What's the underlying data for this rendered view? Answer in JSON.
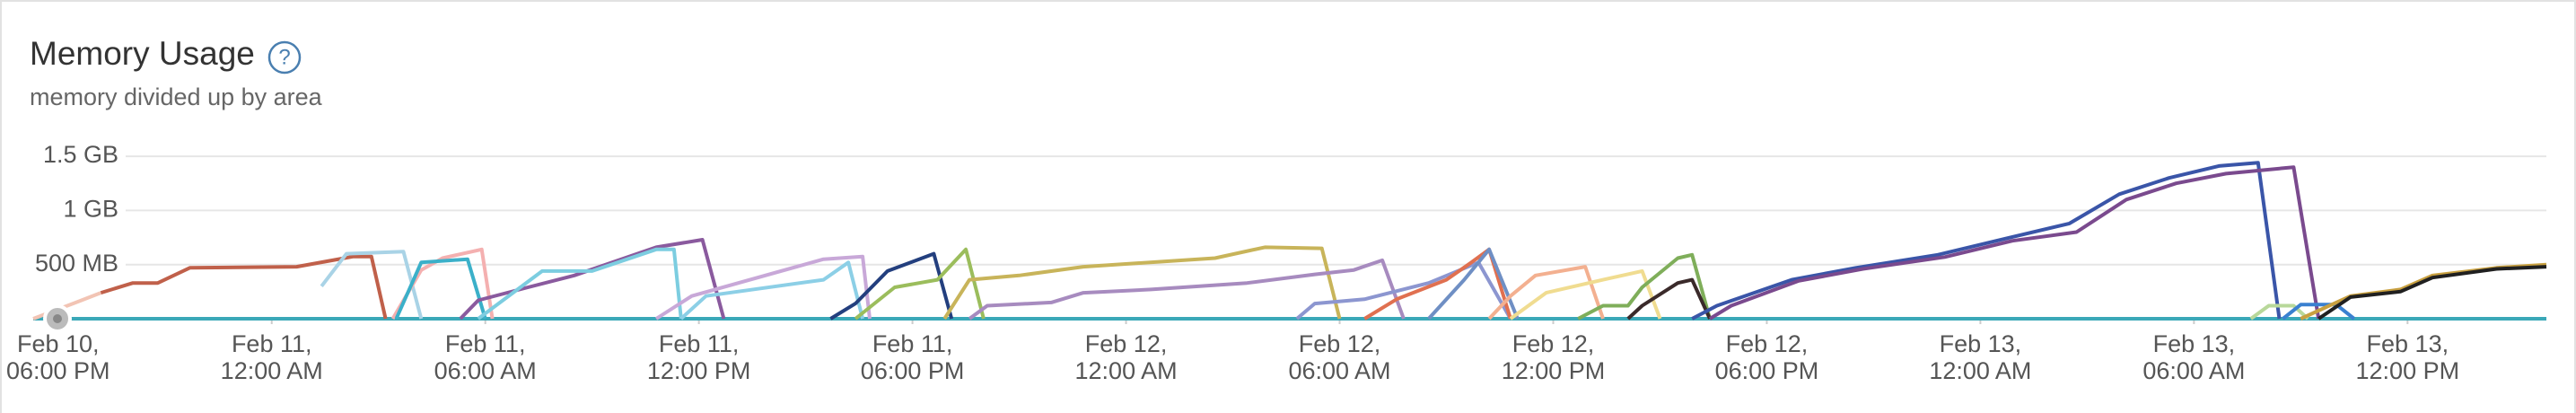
{
  "title": "Memory Usage",
  "help_icon": "?",
  "subtitle": "memory divided up by area",
  "chart_data": {
    "type": "line",
    "xlim": [
      -0.7,
      69.9
    ],
    "xticks": [
      {
        "value": 0,
        "label": "Feb 10, 06:00 PM"
      },
      {
        "value": 6,
        "label": "Feb 11, 12:00 AM"
      },
      {
        "value": 12,
        "label": "Feb 11, 06:00 AM"
      },
      {
        "value": 18,
        "label": "Feb 11, 12:00 PM"
      },
      {
        "value": 24,
        "label": "Feb 11, 06:00 PM"
      },
      {
        "value": 30,
        "label": "Feb 12, 12:00 AM"
      },
      {
        "value": 36,
        "label": "Feb 12, 06:00 AM"
      },
      {
        "value": 42,
        "label": "Feb 12, 12:00 PM"
      },
      {
        "value": 48,
        "label": "Feb 12, 06:00 PM"
      },
      {
        "value": 54,
        "label": "Feb 13, 12:00 AM"
      },
      {
        "value": 60,
        "label": "Feb 13, 06:00 AM"
      },
      {
        "value": 66,
        "label": "Feb 13, 12:00 PM"
      }
    ],
    "ylim": [
      0,
      1650
    ],
    "yticks": [
      {
        "value": 500,
        "label": "500 MB"
      },
      {
        "value": 1000,
        "label": "1 GB"
      },
      {
        "value": 1500,
        "label": "1.5 GB"
      }
    ],
    "grid": true,
    "series": [
      {
        "color": "#3aa8b8",
        "x": [
          -0.7,
          69.9
        ],
        "values": [
          0,
          0
        ]
      },
      {
        "color": "#f2c4b4",
        "x": [
          -0.7,
          0.5,
          1.2
        ],
        "values": [
          0,
          150,
          240
        ]
      },
      {
        "color": "#c0604a",
        "x": [
          1.2,
          2.1,
          2.8,
          3.7,
          6.7,
          8.3,
          8.8,
          9.2
        ],
        "values": [
          240,
          330,
          330,
          470,
          480,
          575,
          575,
          0
        ]
      },
      {
        "color": "#a9d3e6",
        "x": [
          7.4,
          8.1,
          9.7,
          10.2
        ],
        "values": [
          300,
          600,
          620,
          0
        ]
      },
      {
        "color": "#f4b0b0",
        "x": [
          9.4,
          10.2,
          10.8,
          11.9,
          12.2
        ],
        "values": [
          0,
          450,
          560,
          640,
          0
        ]
      },
      {
        "color": "#3bb0c9",
        "x": [
          9.5,
          10.2,
          11.5,
          12.0
        ],
        "values": [
          0,
          520,
          550,
          0
        ]
      },
      {
        "color": "#8a5a9e",
        "x": [
          11.3,
          11.8,
          13.2,
          14.5,
          16.8,
          18.1,
          18.7
        ],
        "values": [
          0,
          170,
          290,
          400,
          660,
          730,
          0
        ]
      },
      {
        "color": "#7ccde0",
        "x": [
          11.8,
          13.6,
          15.0,
          16.8,
          17.3,
          17.5
        ],
        "values": [
          0,
          440,
          440,
          640,
          640,
          0
        ]
      },
      {
        "color": "#c8a8d8",
        "x": [
          16.8,
          17.8,
          21.5,
          22.6,
          22.8
        ],
        "values": [
          0,
          210,
          550,
          575,
          0
        ]
      },
      {
        "color": "#8ccfe6",
        "x": [
          17.5,
          18.2,
          21.5,
          22.2,
          22.6
        ],
        "values": [
          0,
          210,
          360,
          520,
          0
        ]
      },
      {
        "color": "#233f7e",
        "x": [
          21.7,
          22.4,
          23.3,
          24.6,
          25.1
        ],
        "values": [
          0,
          140,
          440,
          600,
          0
        ]
      },
      {
        "color": "#9bbd5c",
        "x": [
          22.4,
          23.5,
          24.7,
          25.5,
          26.0
        ],
        "values": [
          0,
          290,
          360,
          640,
          0
        ]
      },
      {
        "color": "#c8b45a",
        "x": [
          24.9,
          25.6,
          27.0,
          28.8,
          32.5,
          33.9,
          35.5,
          36.0
        ],
        "values": [
          0,
          360,
          400,
          480,
          560,
          660,
          650,
          0
        ]
      },
      {
        "color": "#a78bbf",
        "x": [
          25.6,
          26.1,
          27.9,
          28.8,
          30.7,
          33.4,
          35.3,
          36.4,
          37.2,
          37.8
        ],
        "values": [
          0,
          120,
          150,
          240,
          270,
          330,
          410,
          450,
          540,
          0
        ]
      },
      {
        "color": "#8c96d0",
        "x": [
          34.8,
          35.3,
          36.7,
          38.5,
          39.9,
          40.8
        ],
        "values": [
          0,
          140,
          180,
          330,
          520,
          0
        ]
      },
      {
        "color": "#e07050",
        "x": [
          36.7,
          37.6,
          39.0,
          39.7,
          40.2,
          40.8
        ],
        "values": [
          0,
          180,
          360,
          520,
          640,
          0
        ]
      },
      {
        "color": "#6f8fc4",
        "x": [
          38.5,
          39.5,
          40.2,
          41.0
        ],
        "values": [
          0,
          360,
          640,
          0
        ]
      },
      {
        "color": "#f3b090",
        "x": [
          40.2,
          40.8,
          41.5,
          42.9,
          43.4
        ],
        "values": [
          0,
          210,
          400,
          480,
          0
        ]
      },
      {
        "color": "#f0dc90",
        "x": [
          40.8,
          41.8,
          43.4,
          44.5,
          45.0
        ],
        "values": [
          0,
          240,
          360,
          440,
          0
        ]
      },
      {
        "color": "#7fae5a",
        "x": [
          42.7,
          43.4,
          44.1,
          44.5,
          45.5,
          45.9,
          46.4
        ],
        "values": [
          0,
          120,
          120,
          290,
          560,
          590,
          0
        ]
      },
      {
        "color": "#3a2a2a",
        "x": [
          44.1,
          44.5,
          45.5,
          45.9,
          46.4
        ],
        "values": [
          0,
          120,
          330,
          360,
          0
        ]
      },
      {
        "color": "#3a55a8",
        "x": [
          45.9,
          46.6,
          48.7,
          50.5,
          52.8,
          54.7,
          56.5,
          57.9,
          59.3,
          60.7,
          61.8,
          62.4
        ],
        "values": [
          0,
          120,
          360,
          470,
          590,
          740,
          880,
          1150,
          1300,
          1410,
          1440,
          0
        ]
      },
      {
        "color": "#7a4a8e",
        "x": [
          46.4,
          47.0,
          48.9,
          50.7,
          53.0,
          54.9,
          56.7,
          58.1,
          59.5,
          60.9,
          62.8,
          63.5
        ],
        "values": [
          0,
          120,
          350,
          460,
          570,
          720,
          800,
          1100,
          1250,
          1340,
          1400,
          0
        ]
      },
      {
        "color": "#b8d89a",
        "x": [
          61.6,
          62.1,
          62.8,
          63.2
        ],
        "values": [
          0,
          120,
          120,
          0
        ]
      },
      {
        "color": "#3a80d0",
        "x": [
          62.5,
          63.0,
          64.0,
          64.5
        ],
        "values": [
          0,
          130,
          130,
          0
        ]
      },
      {
        "color": "#c8a040",
        "x": [
          63.0,
          64.4,
          65.8,
          66.7,
          68.5,
          69.9
        ],
        "values": [
          0,
          210,
          270,
          400,
          470,
          500
        ]
      },
      {
        "color": "#202020",
        "x": [
          63.5,
          64.4,
          65.8,
          66.7,
          68.5,
          69.9
        ],
        "values": [
          0,
          200,
          250,
          380,
          460,
          480
        ]
      }
    ]
  }
}
